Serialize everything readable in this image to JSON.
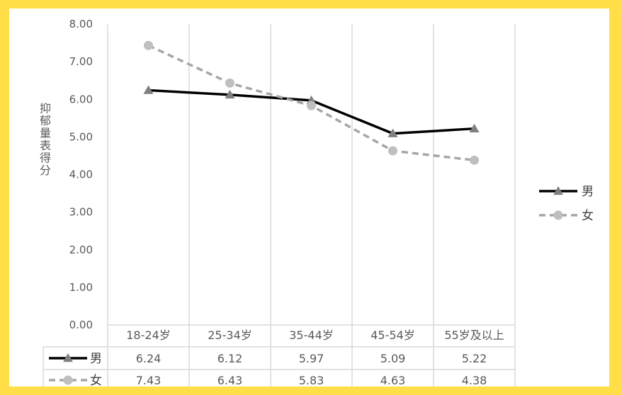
{
  "chart_data": {
    "type": "line",
    "categories": [
      "18-24岁",
      "25-34岁",
      "35-44岁",
      "45-54岁",
      "55岁及以上"
    ],
    "series": [
      {
        "name": "男",
        "values": [
          6.24,
          6.12,
          5.97,
          5.09,
          5.22
        ],
        "color": "#000000",
        "marker": "triangle",
        "dash": "solid"
      },
      {
        "name": "女",
        "values": [
          7.43,
          6.43,
          5.83,
          4.63,
          4.38
        ],
        "color": "#A6A6A6",
        "marker": "circle",
        "dash": "dashed"
      }
    ],
    "ylabel": "抑郁量表得分",
    "ylim": [
      0,
      8
    ],
    "yticks": [
      "0.00",
      "1.00",
      "2.00",
      "3.00",
      "4.00",
      "5.00",
      "6.00",
      "7.00",
      "8.00"
    ],
    "table_values": [
      [
        "6.24",
        "6.12",
        "5.97",
        "5.09",
        "5.22"
      ],
      [
        "7.43",
        "6.43",
        "5.83",
        "4.63",
        "4.38"
      ]
    ],
    "legend_position": "right",
    "grid": "vertical category lines",
    "data_table": true
  }
}
